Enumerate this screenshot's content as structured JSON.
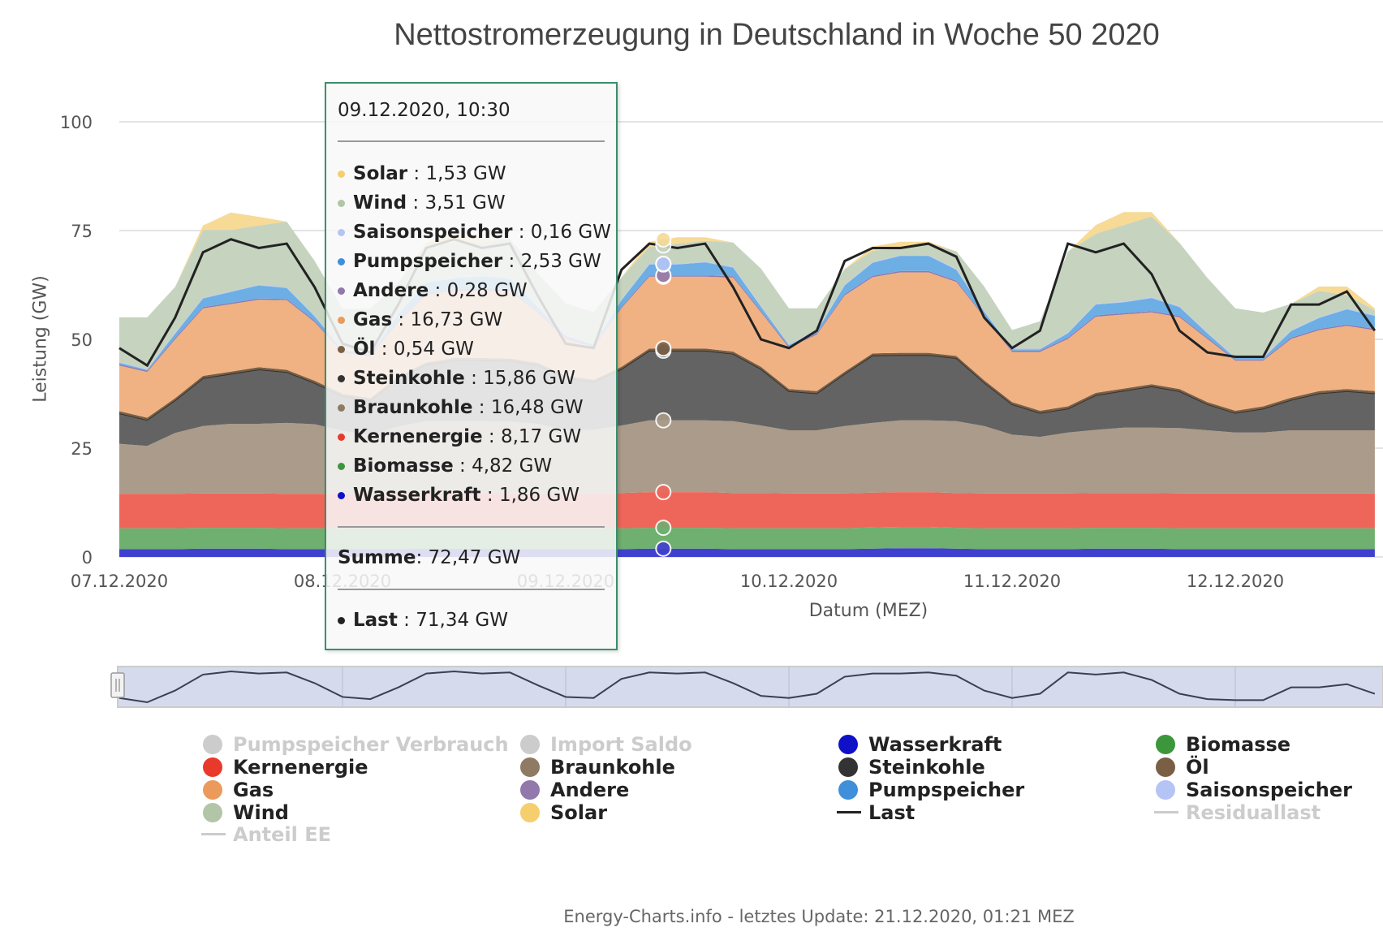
{
  "title": "Nettostromerzeugung in Deutschland in Woche 50 2020",
  "footer": "Energy-Charts.info - letztes Update: 21.12.2020, 01:21 MEZ",
  "chart_data": {
    "type": "area",
    "stacked": true,
    "title": "Nettostromerzeugung in Deutschland in Woche 50 2020",
    "xlabel": "Datum (MEZ)",
    "ylabel": "Leistung (GW)",
    "ylim": [
      0,
      100
    ],
    "yticks": [
      "0",
      "25",
      "50",
      "75",
      "100"
    ],
    "xticks": [
      "07.12.2020",
      "08.12.2020",
      "09.12.2020",
      "10.12.2020",
      "11.12.2020",
      "12.12.2020"
    ],
    "xrange": [
      "2020-12-07T00:00",
      "2020-12-12T16:00"
    ],
    "grid": true,
    "x": [
      "2020-12-07T00:00",
      "2020-12-07T03:00",
      "2020-12-07T06:00",
      "2020-12-07T09:00",
      "2020-12-07T12:00",
      "2020-12-07T15:00",
      "2020-12-07T18:00",
      "2020-12-07T21:00",
      "2020-12-08T00:00",
      "2020-12-08T03:00",
      "2020-12-08T06:00",
      "2020-12-08T09:00",
      "2020-12-08T12:00",
      "2020-12-08T15:00",
      "2020-12-08T18:00",
      "2020-12-08T21:00",
      "2020-12-09T00:00",
      "2020-12-09T03:00",
      "2020-12-09T06:00",
      "2020-12-09T09:00",
      "2020-12-09T12:00",
      "2020-12-09T15:00",
      "2020-12-09T18:00",
      "2020-12-09T21:00",
      "2020-12-10T00:00",
      "2020-12-10T03:00",
      "2020-12-10T06:00",
      "2020-12-10T09:00",
      "2020-12-10T12:00",
      "2020-12-10T15:00",
      "2020-12-10T18:00",
      "2020-12-10T21:00",
      "2020-12-11T00:00",
      "2020-12-11T03:00",
      "2020-12-11T06:00",
      "2020-12-11T09:00",
      "2020-12-11T12:00",
      "2020-12-11T15:00",
      "2020-12-11T18:00",
      "2020-12-11T21:00",
      "2020-12-12T00:00",
      "2020-12-12T03:00",
      "2020-12-12T06:00",
      "2020-12-12T09:00",
      "2020-12-12T12:00",
      "2020-12-12T15:00"
    ],
    "series": [
      {
        "name": "Wasserkraft",
        "fill": "#4040d0",
        "values": [
          1.8,
          1.8,
          1.8,
          1.9,
          1.9,
          1.9,
          1.8,
          1.8,
          1.8,
          1.8,
          1.8,
          1.9,
          1.9,
          1.9,
          1.8,
          1.8,
          1.8,
          1.8,
          1.8,
          1.9,
          1.9,
          1.9,
          1.8,
          1.8,
          1.8,
          1.8,
          1.8,
          1.9,
          2.0,
          2.0,
          1.9,
          1.8,
          1.8,
          1.8,
          1.8,
          1.9,
          1.9,
          1.9,
          1.8,
          1.8,
          1.8,
          1.8,
          1.8,
          1.8,
          1.8,
          1.8
        ]
      },
      {
        "name": "Biomasse",
        "fill": "#6faf6f",
        "values": [
          4.8,
          4.8,
          4.8,
          4.8,
          4.8,
          4.8,
          4.8,
          4.8,
          4.8,
          4.8,
          4.8,
          4.8,
          4.8,
          4.8,
          4.8,
          4.8,
          4.8,
          4.8,
          4.8,
          4.8,
          4.8,
          4.8,
          4.8,
          4.8,
          4.8,
          4.8,
          4.8,
          4.9,
          4.9,
          4.9,
          4.8,
          4.8,
          4.8,
          4.8,
          4.8,
          4.8,
          4.8,
          4.8,
          4.8,
          4.8,
          4.8,
          4.8,
          4.8,
          4.8,
          4.8,
          4.8
        ]
      },
      {
        "name": "Kernenergie",
        "fill": "#ee665a",
        "values": [
          7.9,
          7.9,
          7.9,
          7.9,
          7.9,
          7.9,
          7.9,
          7.9,
          7.9,
          7.9,
          7.9,
          8.0,
          8.0,
          8.0,
          8.0,
          8.0,
          8.1,
          8.1,
          8.1,
          8.2,
          8.2,
          8.2,
          8.1,
          8.1,
          8.0,
          8.0,
          8.0,
          8.0,
          8.0,
          8.0,
          8.0,
          8.0,
          8.0,
          8.0,
          8.0,
          8.0,
          8.0,
          8.0,
          8.0,
          8.0,
          8.0,
          8.0,
          8.0,
          8.0,
          8.0,
          8.0
        ]
      },
      {
        "name": "Braunkohle",
        "fill": "#ab9b8a",
        "values": [
          11.5,
          11,
          14,
          15.5,
          16,
          16,
          16.3,
          16,
          14.5,
          13.5,
          15.5,
          16.5,
          16.5,
          16.5,
          16.5,
          16,
          14.5,
          14.5,
          15.5,
          16.5,
          16.5,
          16.5,
          16.5,
          15.5,
          14.5,
          14.5,
          15.5,
          16,
          16.5,
          16.5,
          16.5,
          15.5,
          13.5,
          13,
          14,
          14.5,
          15,
          15,
          15,
          14.5,
          14,
          14,
          14.5,
          14.5,
          14.5,
          14.5
        ]
      },
      {
        "name": "Steinkohle",
        "fill": "#636363",
        "values": [
          7,
          6,
          7.5,
          11,
          11.5,
          12.5,
          11.7,
          9.5,
          8,
          8,
          11,
          13,
          14,
          14,
          14,
          13.5,
          12,
          11,
          13,
          16,
          16,
          16,
          15.5,
          13,
          9,
          8.5,
          12,
          15.5,
          15,
          15,
          14.5,
          10,
          7,
          5.5,
          5.5,
          8,
          8.5,
          9.5,
          8.5,
          6,
          4.5,
          5.5,
          7,
          8.5,
          9,
          8.5
        ]
      },
      {
        "name": "Öl",
        "fill": "#7a5f45",
        "values": [
          0.5,
          0.5,
          0.5,
          0.5,
          0.5,
          0.5,
          0.5,
          0.5,
          0.5,
          0.5,
          0.5,
          0.5,
          0.5,
          0.5,
          0.5,
          0.5,
          0.5,
          0.5,
          0.5,
          0.5,
          0.5,
          0.5,
          0.5,
          0.5,
          0.5,
          0.5,
          0.5,
          0.5,
          0.5,
          0.5,
          0.5,
          0.5,
          0.5,
          0.5,
          0.5,
          0.5,
          0.5,
          0.5,
          0.5,
          0.5,
          0.5,
          0.5,
          0.5,
          0.5,
          0.5,
          0.5
        ]
      },
      {
        "name": "Gas",
        "fill": "#f0b283",
        "values": [
          10.5,
          10.5,
          13.5,
          15.5,
          15.5,
          15.5,
          16,
          13.5,
          9.5,
          9.5,
          12.5,
          15.5,
          15.5,
          15.5,
          15.5,
          11.5,
          8.5,
          7.5,
          13.5,
          16.5,
          16.5,
          16.5,
          17,
          12.5,
          9.5,
          13,
          17.5,
          17.5,
          18.5,
          18.5,
          17,
          14.5,
          11.5,
          13.5,
          15.5,
          17.5,
          17,
          16.5,
          16.5,
          14.5,
          11.5,
          10.5,
          13.5,
          14,
          14.5,
          14
        ]
      },
      {
        "name": "Andere",
        "fill": "#9179ac",
        "values": [
          0.3,
          0.3,
          0.3,
          0.3,
          0.3,
          0.3,
          0.3,
          0.3,
          0.3,
          0.3,
          0.3,
          0.3,
          0.3,
          0.3,
          0.3,
          0.3,
          0.3,
          0.3,
          0.3,
          0.3,
          0.3,
          0.3,
          0.3,
          0.3,
          0.3,
          0.3,
          0.3,
          0.3,
          0.3,
          0.3,
          0.3,
          0.3,
          0.3,
          0.3,
          0.3,
          0.3,
          0.3,
          0.3,
          0.3,
          0.3,
          0.3,
          0.3,
          0.3,
          0.3,
          0.3,
          0.3
        ]
      },
      {
        "name": "Pumpspeicher",
        "fill": "#6daee4",
        "values": [
          0.3,
          0.2,
          1,
          2,
          2.5,
          3,
          2.5,
          1,
          0.3,
          0.3,
          1.5,
          2.5,
          2.5,
          3,
          2.5,
          1,
          0.3,
          0.3,
          1.5,
          2.5,
          2.5,
          3,
          2,
          1,
          0.3,
          0.5,
          2,
          3,
          3.5,
          3.5,
          2.5,
          1,
          0.3,
          0.3,
          1,
          2.5,
          2.5,
          3,
          2,
          1,
          0.3,
          0.3,
          1.5,
          2.5,
          3.5,
          3
        ]
      },
      {
        "name": "Saisonspeicher",
        "fill": "#b4c4f5",
        "values": [
          0.15,
          0.15,
          0.15,
          0.15,
          0.15,
          0.15,
          0.15,
          0.15,
          0.15,
          0.15,
          0.15,
          0.15,
          0.15,
          0.15,
          0.15,
          0.15,
          0.15,
          0.15,
          0.15,
          0.15,
          0.15,
          0.15,
          0.15,
          0.15,
          0.15,
          0.15,
          0.15,
          0.15,
          0.15,
          0.15,
          0.15,
          0.15,
          0.15,
          0.15,
          0.15,
          0.15,
          0.15,
          0.15,
          0.15,
          0.15,
          0.15,
          0.15,
          0.15,
          0.15,
          0.15,
          0.15
        ]
      },
      {
        "name": "Wind",
        "fill": "#c6d3bf",
        "values": [
          10.3,
          11.9,
          10.6,
          15.6,
          14.1,
          13.6,
          15.1,
          12.6,
          9.3,
          10.3,
          7.1,
          8.3,
          8.1,
          7.6,
          9.1,
          7.6,
          7.3,
          7.3,
          5.1,
          3.9,
          4.6,
          4.8,
          5.6,
          8.6,
          8.3,
          5.1,
          3.6,
          2.6,
          1.6,
          2.6,
          4.1,
          5.6,
          4.3,
          6.3,
          18.6,
          16.1,
          17.6,
          18.6,
          14.6,
          12.6,
          11.3,
          10.3,
          6.1,
          6.1,
          3.1,
          1.1
        ]
      },
      {
        "name": "Solar",
        "fill": "#f6da95",
        "values": [
          0,
          0,
          0,
          1,
          4,
          2,
          0,
          0,
          0,
          0,
          0,
          0.8,
          2,
          1,
          0,
          0,
          0,
          0,
          0,
          1.2,
          1.5,
          0.8,
          0,
          0,
          0,
          0,
          0,
          1,
          1.5,
          0.5,
          0,
          0,
          0,
          0,
          0,
          2,
          3,
          1,
          0,
          0,
          0,
          0,
          0,
          1,
          2,
          0.5
        ]
      }
    ],
    "line_series": {
      "name": "Last",
      "color": "#222222",
      "values": [
        48,
        44,
        55,
        70,
        73,
        71,
        72,
        62,
        49,
        47,
        58,
        71,
        73,
        71,
        72,
        60,
        49,
        48,
        66,
        72,
        71,
        72,
        62,
        50,
        48,
        52,
        68,
        71,
        71,
        72,
        69,
        55,
        48,
        52,
        72,
        70,
        72,
        65,
        52,
        47,
        46,
        46,
        58,
        58,
        61,
        52
      ]
    },
    "legend_placement": "bottom"
  },
  "tooltip": {
    "date": "09.12.2020, 10:30",
    "cursor_time": "2020-12-09T10:30",
    "items": [
      {
        "label": "Solar",
        "value": "1,53 GW",
        "color": "#f5cf6e"
      },
      {
        "label": "Wind",
        "value": "3,51 GW",
        "color": "#b2c5a6"
      },
      {
        "label": "Saisonspeicher",
        "value": "0,16 GW",
        "color": "#b4c4f5"
      },
      {
        "label": "Pumpspeicher",
        "value": "2,53 GW",
        "color": "#3f8fdb"
      },
      {
        "label": "Andere",
        "value": "0,28 GW",
        "color": "#9179ac"
      },
      {
        "label": "Gas",
        "value": "16,73 GW",
        "color": "#ec9a5c"
      },
      {
        "label": "Öl",
        "value": "0,54 GW",
        "color": "#7a5f45"
      },
      {
        "label": "Steinkohle",
        "value": "15,86 GW",
        "color": "#333333"
      },
      {
        "label": "Braunkohle",
        "value": "16,48 GW",
        "color": "#8f7a63"
      },
      {
        "label": "Kernenergie",
        "value": "8,17 GW",
        "color": "#e8392a"
      },
      {
        "label": "Biomasse",
        "value": "4,82 GW",
        "color": "#3c963c"
      },
      {
        "label": "Wasserkraft",
        "value": "1,86 GW",
        "color": "#1010c8"
      }
    ],
    "sum_label": "Summe",
    "sum_value": "72,47 GW",
    "last": {
      "label": "Last",
      "value": "71,34 GW",
      "color": "#222222"
    }
  },
  "legend": [
    {
      "label": "Pumpspeicher Verbrauch",
      "color": "#cccccc",
      "type": "circle",
      "enabled": false
    },
    {
      "label": "Kernenergie",
      "color": "#e8392a",
      "type": "circle",
      "enabled": true
    },
    {
      "label": "Gas",
      "color": "#ec9a5c",
      "type": "circle",
      "enabled": true
    },
    {
      "label": "Wind",
      "color": "#b2c5a6",
      "type": "circle",
      "enabled": true
    },
    {
      "label": "Anteil EE",
      "color": "#cccccc",
      "type": "line",
      "enabled": false
    },
    {
      "label": "Import Saldo",
      "color": "#cccccc",
      "type": "circle",
      "enabled": false
    },
    {
      "label": "Braunkohle",
      "color": "#8f7a63",
      "type": "circle",
      "enabled": true
    },
    {
      "label": "Andere",
      "color": "#9179ac",
      "type": "circle",
      "enabled": true
    },
    {
      "label": "Solar",
      "color": "#f5cf6e",
      "type": "circle",
      "enabled": true
    },
    {
      "label": "Wasserkraft",
      "color": "#1010c8",
      "type": "circle",
      "enabled": true
    },
    {
      "label": "Steinkohle",
      "color": "#333333",
      "type": "circle",
      "enabled": true
    },
    {
      "label": "Pumpspeicher",
      "color": "#3f8fdb",
      "type": "circle",
      "enabled": true
    },
    {
      "label": "Last",
      "color": "#222222",
      "type": "line",
      "enabled": true
    },
    {
      "label": "Biomasse",
      "color": "#3c963c",
      "type": "circle",
      "enabled": true
    },
    {
      "label": "Öl",
      "color": "#7a5f45",
      "type": "circle",
      "enabled": true
    },
    {
      "label": "Saisonspeicher",
      "color": "#b4c4f5",
      "type": "circle",
      "enabled": true
    },
    {
      "label": "Residuallast",
      "color": "#cccccc",
      "type": "line",
      "enabled": false
    }
  ]
}
